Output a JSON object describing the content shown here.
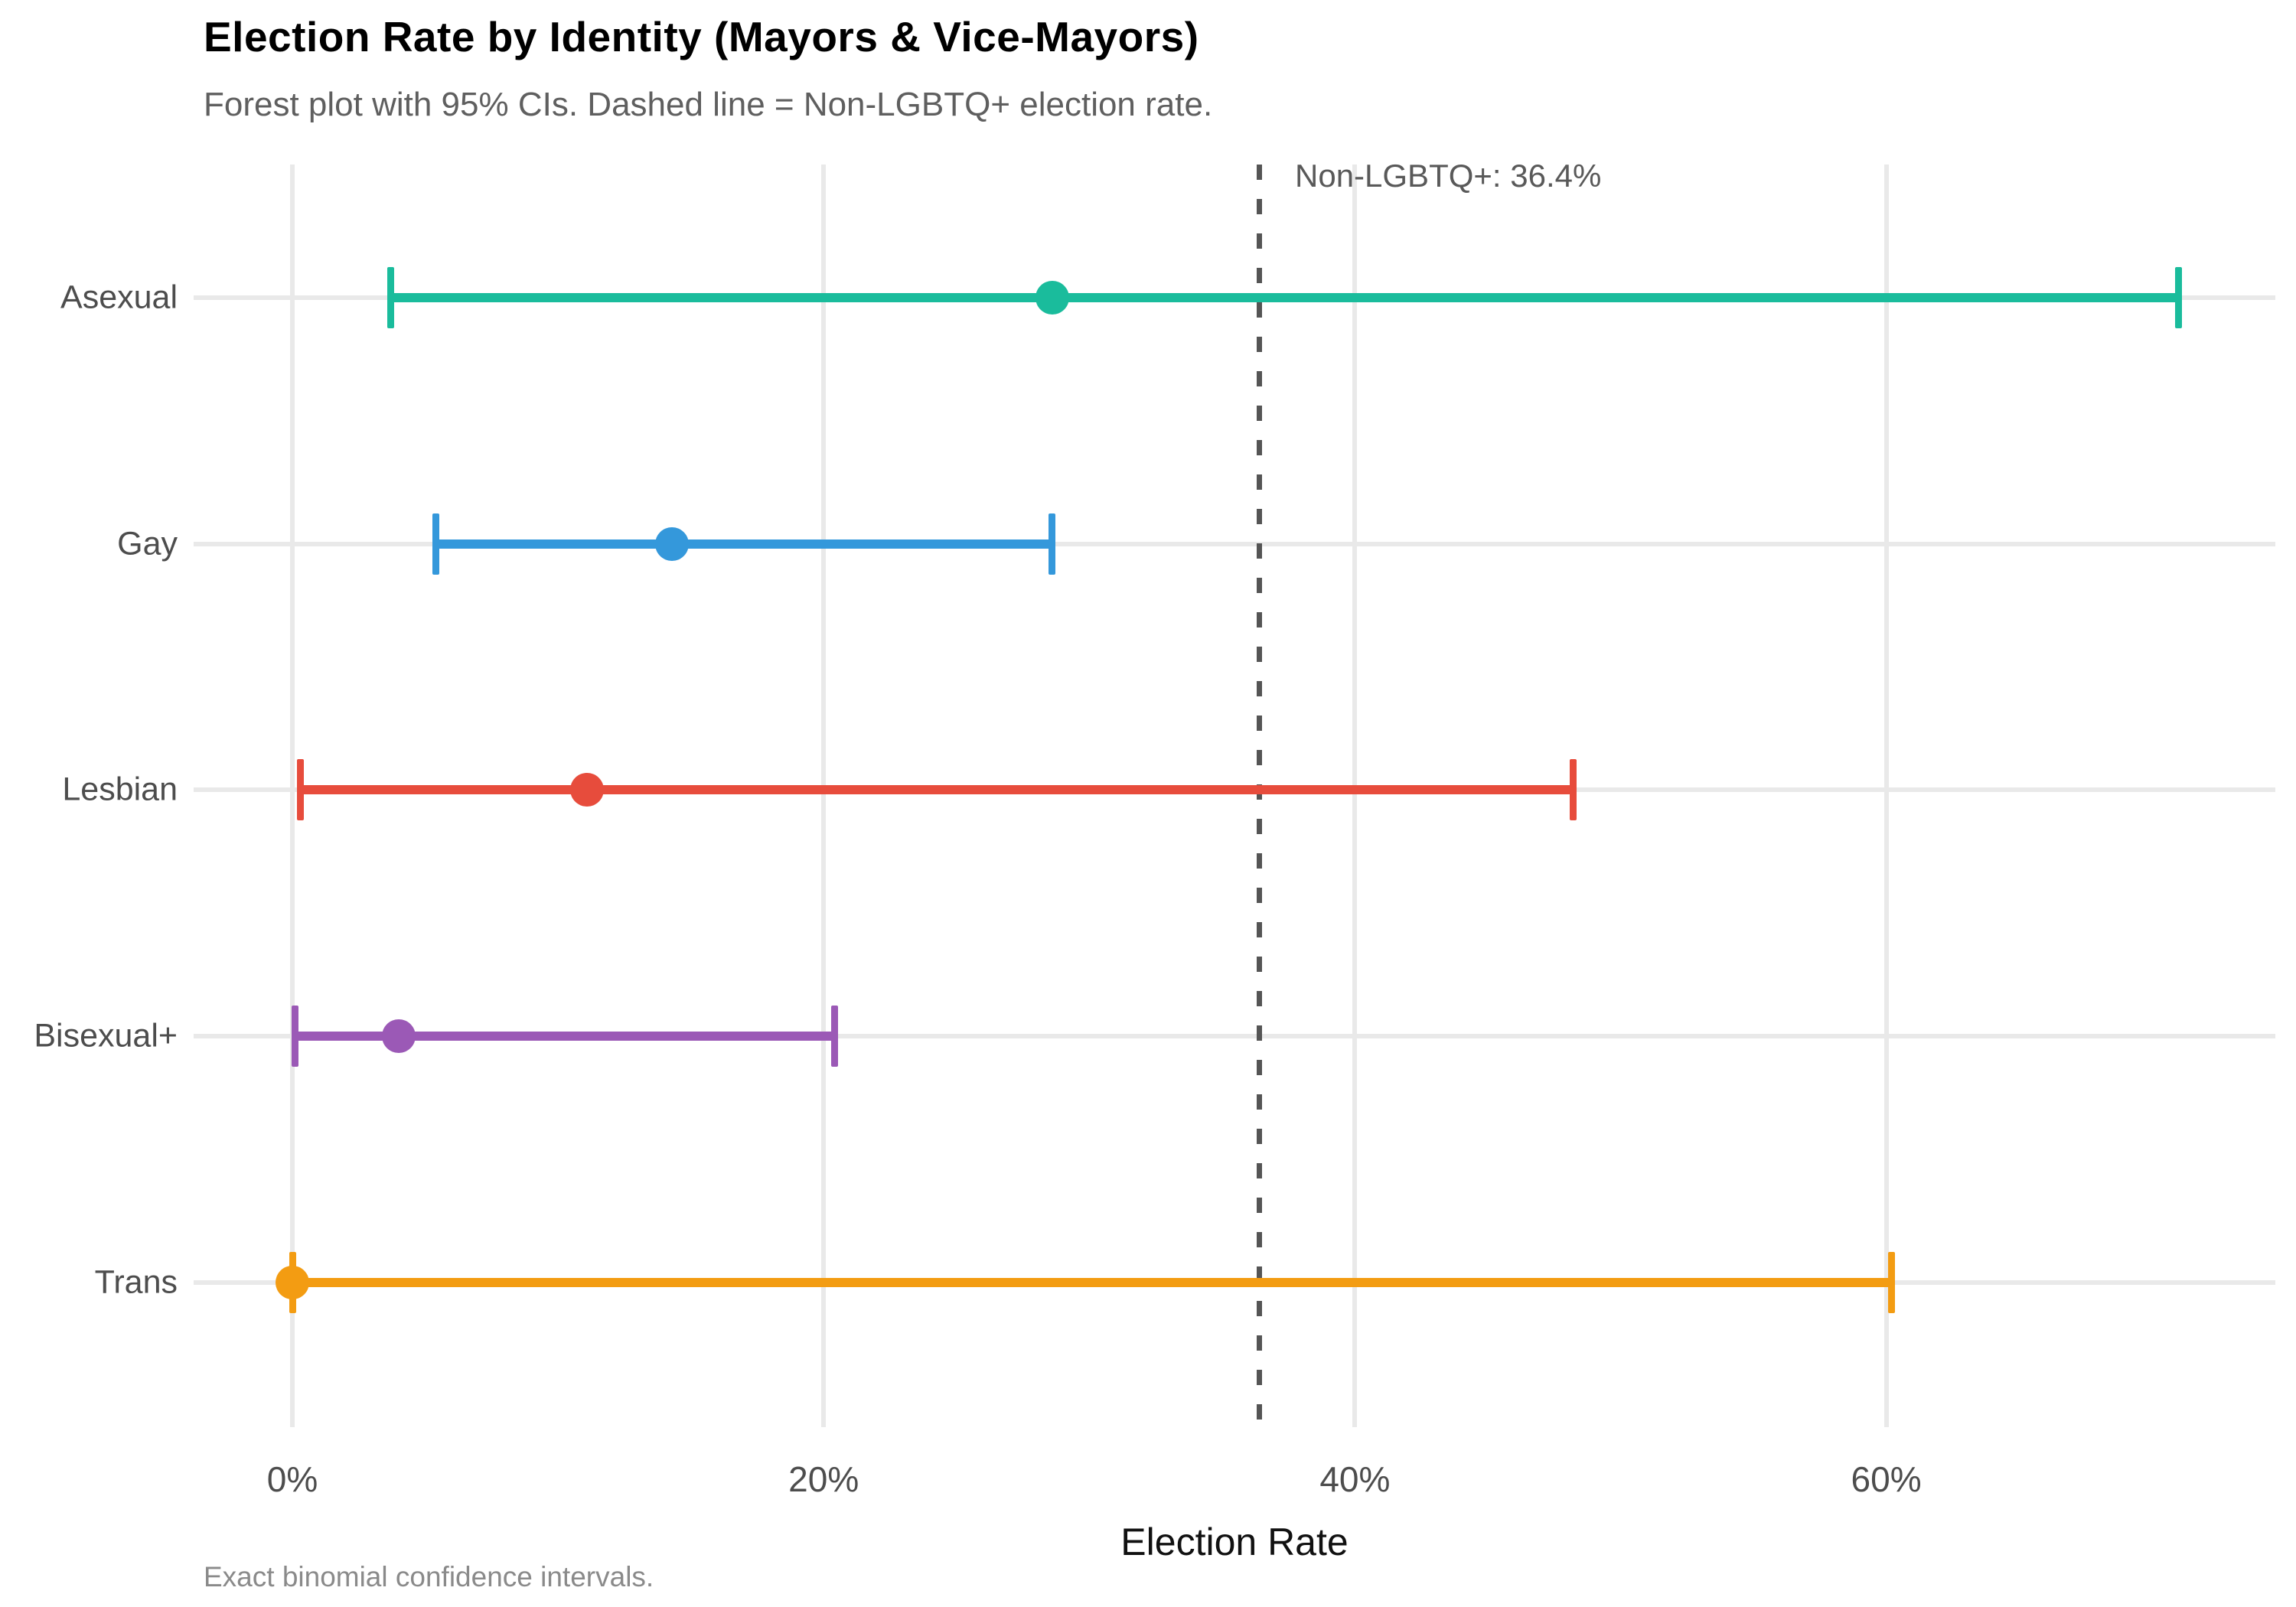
{
  "chart_data": {
    "type": "scatter",
    "variant": "forest-plot",
    "title": "Election Rate by Identity (Mayors & Vice-Mayors)",
    "subtitle": "Forest plot with 95% CIs. Dashed line = Non-LGBTQ+ election rate.",
    "caption": "Exact binomial confidence intervals.",
    "xlabel": "Election Rate",
    "ylabel": "",
    "ci_level": "95%",
    "categories": [
      "Asexual",
      "Gay",
      "Lesbian",
      "Bisexual+",
      "Trans"
    ],
    "points": [
      {
        "label": "Asexual",
        "estimate_pct": 28.6,
        "ci_low_pct": 3.7,
        "ci_high_pct": 71.0,
        "color": "#1abc9c"
      },
      {
        "label": "Gay",
        "estimate_pct": 14.3,
        "ci_low_pct": 5.4,
        "ci_high_pct": 28.6,
        "color": "#3498db"
      },
      {
        "label": "Lesbian",
        "estimate_pct": 11.1,
        "ci_low_pct": 0.3,
        "ci_high_pct": 48.2,
        "color": "#e74c3c"
      },
      {
        "label": "Bisexual+",
        "estimate_pct": 4.0,
        "ci_low_pct": 0.1,
        "ci_high_pct": 20.4,
        "color": "#9b59b6"
      },
      {
        "label": "Trans",
        "estimate_pct": 0.0,
        "ci_low_pct": 0.0,
        "ci_high_pct": 60.2,
        "color": "#f39c12"
      }
    ],
    "reference_line": {
      "value_pct": 36.4,
      "label": "Non-LGBTQ+: 36.4%",
      "style": "dashed",
      "color": "#555555"
    },
    "x_ticks": [
      {
        "value_pct": 0,
        "label": "0%"
      },
      {
        "value_pct": 20,
        "label": "20%"
      },
      {
        "value_pct": 40,
        "label": "40%"
      },
      {
        "value_pct": 60,
        "label": "60%"
      }
    ],
    "xlim_pct": [
      -3.7,
      74.7
    ],
    "grid": true,
    "legend": false
  },
  "colors": {
    "grid": "#e9e9e9",
    "reference_line": "#555555",
    "title_text": "#000000",
    "subtitle_text": "#5f5f5f",
    "tick_text": "#4d4d4d",
    "caption_text": "#8a8a8a"
  }
}
